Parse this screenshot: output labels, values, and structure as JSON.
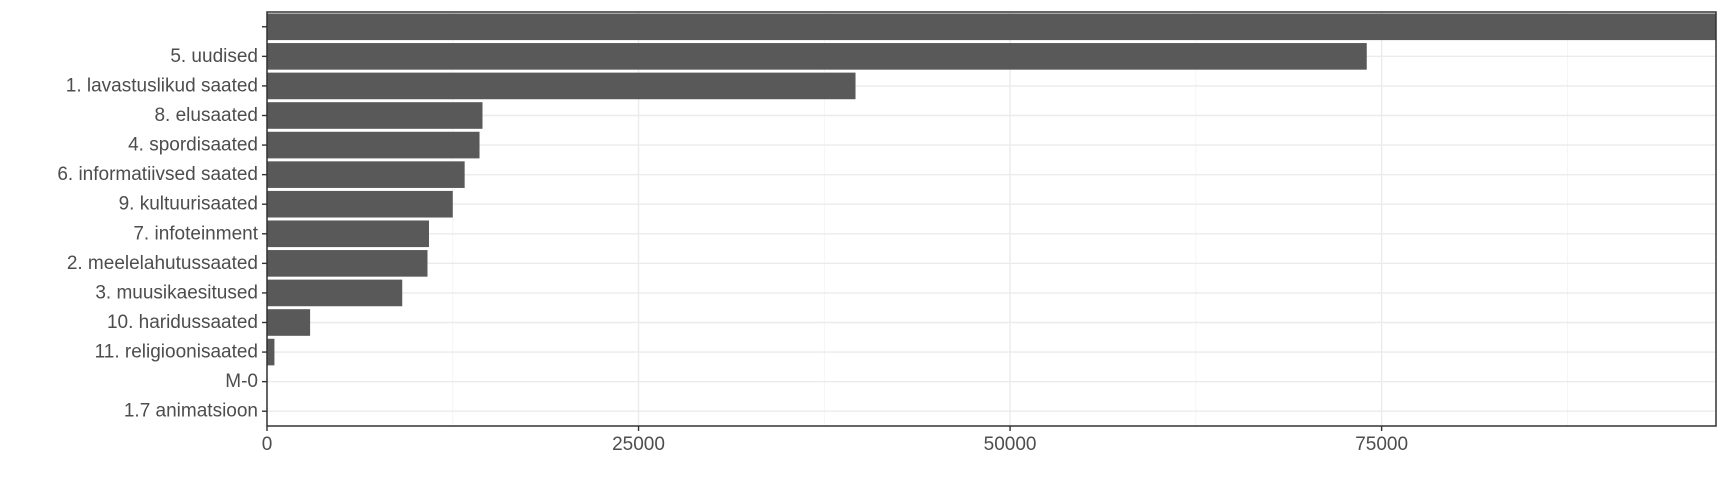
{
  "chart_data": {
    "type": "bar",
    "orientation": "horizontal",
    "title": "",
    "xlabel": "",
    "ylabel": "",
    "categories": [
      "",
      "5. uudised",
      "1. lavastuslikud saated",
      "8. elusaated",
      "4. spordisaated",
      "6. informatiivsed saated",
      "9. kultuurisaated",
      "7. infoteinment",
      "2. meelelahutussaated",
      "3. muusikaesitused",
      "10. haridussaated",
      "11. religioonisaated",
      "M-0",
      "1.7 animatsioon"
    ],
    "values": [
      104000,
      74000,
      39600,
      14500,
      14300,
      13300,
      12500,
      10900,
      10800,
      9100,
      2900,
      500,
      0,
      0
    ],
    "xlim": [
      0,
      97500
    ],
    "xticks": [
      0,
      25000,
      50000,
      75000
    ],
    "xtick_labels": [
      "0",
      "25000",
      "50000",
      "75000"
    ],
    "grid": true,
    "bar_color": "#595959",
    "grid_color": "#ebebeb",
    "background": "#ffffff",
    "legend": "none"
  }
}
